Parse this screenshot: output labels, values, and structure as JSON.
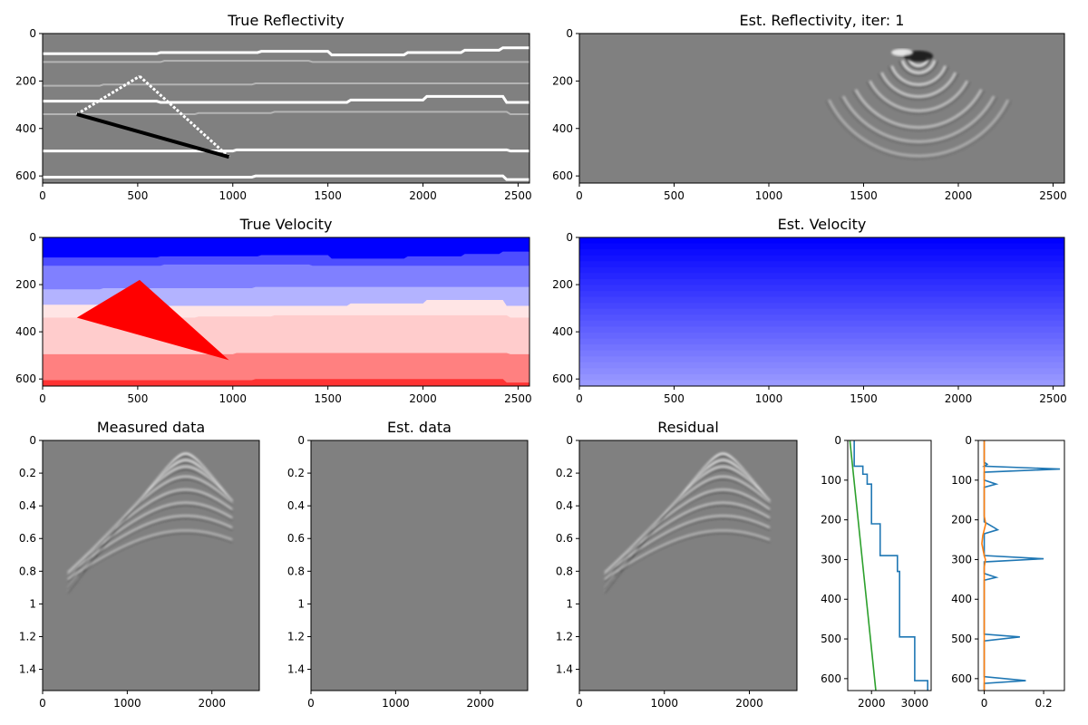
{
  "chart_data": [
    {
      "id": "true_reflectivity",
      "type": "heatmap",
      "title": "True Reflectivity",
      "colormap": "gray",
      "xlim": [
        0,
        2560
      ],
      "ylim": [
        630,
        0
      ],
      "xticks": [
        0,
        500,
        1000,
        1500,
        2000,
        2500
      ],
      "yticks": [
        0,
        200,
        400,
        600
      ],
      "layers": [
        {
          "name": "interface",
          "points": [
            [
              0,
              85
            ],
            [
              600,
              85
            ],
            [
              620,
              80
            ],
            [
              1130,
              80
            ],
            [
              1150,
              75
            ],
            [
              1500,
              75
            ],
            [
              1520,
              90
            ],
            [
              1900,
              90
            ],
            [
              1920,
              80
            ],
            [
              2200,
              80
            ],
            [
              2220,
              70
            ],
            [
              2400,
              70
            ],
            [
              2420,
              60
            ],
            [
              2560,
              60
            ]
          ],
          "amplitude": 1
        },
        {
          "name": "interface",
          "points": [
            [
              0,
              120
            ],
            [
              620,
              120
            ],
            [
              640,
              115
            ],
            [
              1400,
              115
            ],
            [
              1420,
              120
            ],
            [
              2560,
              120
            ]
          ],
          "amplitude": 0.6
        },
        {
          "name": "interface",
          "points": [
            [
              0,
              220
            ],
            [
              300,
              220
            ],
            [
              320,
              215
            ],
            [
              1100,
              215
            ],
            [
              1120,
              210
            ],
            [
              2560,
              210
            ]
          ],
          "amplitude": 0.6
        },
        {
          "name": "interface",
          "points": [
            [
              0,
              285
            ],
            [
              600,
              285
            ],
            [
              620,
              290
            ],
            [
              1600,
              290
            ],
            [
              1620,
              280
            ],
            [
              2000,
              280
            ],
            [
              2020,
              265
            ],
            [
              2420,
              265
            ],
            [
              2440,
              290
            ],
            [
              2560,
              290
            ]
          ],
          "amplitude": 1
        },
        {
          "name": "interface",
          "points": [
            [
              0,
              340
            ],
            [
              800,
              340
            ],
            [
              820,
              335
            ],
            [
              1200,
              335
            ],
            [
              1220,
              330
            ],
            [
              2440,
              330
            ],
            [
              2460,
              340
            ],
            [
              2560,
              340
            ]
          ],
          "amplitude": 0.6
        },
        {
          "name": "interface",
          "points": [
            [
              0,
              495
            ],
            [
              1000,
              495
            ],
            [
              1020,
              490
            ],
            [
              2440,
              490
            ],
            [
              2460,
              495
            ],
            [
              2560,
              495
            ]
          ],
          "amplitude": 1
        },
        {
          "name": "interface",
          "points": [
            [
              0,
              605
            ],
            [
              1100,
              605
            ],
            [
              1120,
              600
            ],
            [
              2420,
              600
            ],
            [
              2440,
              615
            ],
            [
              2560,
              615
            ]
          ],
          "amplitude": 1
        }
      ],
      "wedge": {
        "apex": [
          510,
          180
        ],
        "left": [
          180,
          340
        ],
        "right": [
          980,
          520
        ],
        "top_amplitude": 1,
        "bottom_amplitude": -1
      }
    },
    {
      "id": "est_reflectivity",
      "type": "heatmap",
      "title": "Est. Reflectivity, iter: 1",
      "colormap": "gray",
      "xlim": [
        0,
        2560
      ],
      "ylim": [
        630,
        0
      ],
      "xticks": [
        0,
        500,
        1000,
        1500,
        2000,
        2500
      ],
      "yticks": [
        0,
        200,
        400,
        600
      ],
      "source": [
        1790,
        95
      ],
      "arcs": [
        {
          "radius": 40,
          "amplitude": 1,
          "half_width_deg": 80
        },
        {
          "radius": 70,
          "amplitude": 0.85,
          "half_width_deg": 75
        },
        {
          "radius": 120,
          "amplitude": 0.7,
          "half_width_deg": 70
        },
        {
          "radius": 170,
          "amplitude": 0.6,
          "half_width_deg": 66
        },
        {
          "radius": 230,
          "amplitude": 0.5,
          "half_width_deg": 63
        },
        {
          "radius": 300,
          "amplitude": 0.45,
          "half_width_deg": 62
        },
        {
          "radius": 360,
          "amplitude": 0.35,
          "half_width_deg": 62
        },
        {
          "radius": 420,
          "amplitude": 0.25,
          "half_width_deg": 64
        }
      ]
    },
    {
      "id": "true_velocity",
      "type": "heatmap",
      "title": "True Velocity",
      "colormap": "bwr",
      "xlim": [
        0,
        2560
      ],
      "ylim": [
        630,
        0
      ],
      "xticks": [
        0,
        500,
        1000,
        1500,
        2000,
        2500
      ],
      "yticks": [
        0,
        200,
        400,
        600
      ],
      "layers": [
        {
          "top": [
            [
              0,
              0
            ],
            [
              2560,
              0
            ]
          ],
          "value": 1500
        },
        {
          "top": [
            [
              0,
              85
            ],
            [
              600,
              85
            ],
            [
              620,
              80
            ],
            [
              1130,
              80
            ],
            [
              1150,
              75
            ],
            [
              1500,
              75
            ],
            [
              1520,
              90
            ],
            [
              1900,
              90
            ],
            [
              1920,
              80
            ],
            [
              2200,
              80
            ],
            [
              2220,
              70
            ],
            [
              2400,
              70
            ],
            [
              2420,
              60
            ],
            [
              2560,
              60
            ]
          ],
          "value": 1800
        },
        {
          "top": [
            [
              0,
              120
            ],
            [
              620,
              120
            ],
            [
              640,
              115
            ],
            [
              1400,
              115
            ],
            [
              1420,
              120
            ],
            [
              2560,
              120
            ]
          ],
          "value": 2000
        },
        {
          "top": [
            [
              0,
              220
            ],
            [
              300,
              220
            ],
            [
              320,
              215
            ],
            [
              1100,
              215
            ],
            [
              1120,
              210
            ],
            [
              2560,
              210
            ]
          ],
          "value": 2200
        },
        {
          "top": [
            [
              0,
              285
            ],
            [
              600,
              285
            ],
            [
              620,
              290
            ],
            [
              1600,
              290
            ],
            [
              1620,
              280
            ],
            [
              2000,
              280
            ],
            [
              2020,
              265
            ],
            [
              2420,
              265
            ],
            [
              2440,
              290
            ],
            [
              2560,
              290
            ]
          ],
          "value": 2600
        },
        {
          "top": [
            [
              0,
              340
            ],
            [
              800,
              340
            ],
            [
              820,
              335
            ],
            [
              1200,
              335
            ],
            [
              1220,
              330
            ],
            [
              2440,
              330
            ],
            [
              2460,
              340
            ],
            [
              2560,
              340
            ]
          ],
          "value": 2700
        },
        {
          "top": [
            [
              0,
              495
            ],
            [
              1000,
              495
            ],
            [
              1020,
              490
            ],
            [
              2440,
              490
            ],
            [
              2460,
              495
            ],
            [
              2560,
              495
            ]
          ],
          "value": 3000
        },
        {
          "top": [
            [
              0,
              605
            ],
            [
              1100,
              605
            ],
            [
              1120,
              600
            ],
            [
              2420,
              600
            ],
            [
              2440,
              615
            ],
            [
              2560,
              615
            ]
          ],
          "value": 3300
        }
      ],
      "wedge": {
        "apex": [
          510,
          180
        ],
        "left": [
          180,
          340
        ],
        "right": [
          980,
          520
        ],
        "value": 3500
      }
    },
    {
      "id": "est_velocity",
      "type": "heatmap",
      "title": "Est. Velocity",
      "colormap": "bwr",
      "xlim": [
        0,
        2560
      ],
      "ylim": [
        630,
        0
      ],
      "xticks": [
        0,
        500,
        1000,
        1500,
        2000,
        2500
      ],
      "yticks": [
        0,
        200,
        400,
        600
      ],
      "gradient": {
        "top_value": 1500,
        "bottom_value": 2100,
        "steps": 25
      }
    },
    {
      "id": "measured_data",
      "type": "heatmap",
      "title": "Measured data",
      "colormap": "gray",
      "xlim": [
        0,
        2560
      ],
      "ylim": [
        1.53,
        0
      ],
      "xticks": [
        0,
        1000,
        2000
      ],
      "yticks": [
        0.0,
        0.2,
        0.4,
        0.6,
        0.8,
        1.0,
        1.2,
        1.4
      ],
      "source_x": 1690,
      "x_extent": [
        300,
        2240
      ],
      "events": [
        {
          "t0": 0.08,
          "velocity": 1500,
          "amplitude": 1
        },
        {
          "t0": 0.12,
          "velocity": 1550,
          "amplitude": 0.9
        },
        {
          "t0": 0.16,
          "velocity": 1650,
          "amplitude": 0.7
        },
        {
          "t0": 0.22,
          "velocity": 1750,
          "amplitude": 0.55
        },
        {
          "t0": 0.3,
          "velocity": 1850,
          "amplitude": 0.5
        },
        {
          "t0": 0.38,
          "velocity": 1950,
          "amplitude": 0.45
        },
        {
          "t0": 0.46,
          "velocity": 2050,
          "amplitude": 0.4
        },
        {
          "t0": 0.55,
          "velocity": 2150,
          "amplitude": 0.3
        }
      ]
    },
    {
      "id": "est_data",
      "type": "heatmap",
      "title": "Est. data",
      "colormap": "gray",
      "xlim": [
        0,
        2560
      ],
      "ylim": [
        1.53,
        0
      ],
      "xticks": [
        0,
        1000,
        2000
      ],
      "yticks": [
        0.0,
        0.2,
        0.4,
        0.6,
        0.8,
        1.0,
        1.2,
        1.4
      ],
      "events": []
    },
    {
      "id": "residual",
      "type": "heatmap",
      "title": "Residual",
      "colormap": "gray",
      "xlim": [
        0,
        2560
      ],
      "ylim": [
        1.53,
        0
      ],
      "xticks": [
        0,
        1000,
        2000
      ],
      "yticks": [
        0.0,
        0.2,
        0.4,
        0.6,
        0.8,
        1.0,
        1.2,
        1.4
      ],
      "source_x": 1690,
      "x_extent": [
        300,
        2240
      ],
      "events": [
        {
          "t0": 0.08,
          "velocity": 1500,
          "amplitude": 1
        },
        {
          "t0": 0.12,
          "velocity": 1550,
          "amplitude": 0.9
        },
        {
          "t0": 0.16,
          "velocity": 1650,
          "amplitude": 0.7
        },
        {
          "t0": 0.22,
          "velocity": 1750,
          "amplitude": 0.55
        },
        {
          "t0": 0.3,
          "velocity": 1850,
          "amplitude": 0.5
        },
        {
          "t0": 0.38,
          "velocity": 1950,
          "amplitude": 0.45
        },
        {
          "t0": 0.46,
          "velocity": 2050,
          "amplitude": 0.4
        },
        {
          "t0": 0.55,
          "velocity": 2150,
          "amplitude": 0.3
        }
      ]
    },
    {
      "id": "velocity_profile",
      "type": "line",
      "title": "",
      "xlim": [
        1450,
        3380
      ],
      "ylim": [
        630,
        0
      ],
      "xticks": [
        2000,
        3000
      ],
      "yticks": [
        0,
        100,
        200,
        300,
        400,
        500,
        600
      ],
      "series": [
        {
          "color": "#1f77b4",
          "points": [
            [
              1600,
              0
            ],
            [
              1600,
              65
            ],
            [
              1800,
              65
            ],
            [
              1800,
              80
            ],
            [
              1800,
              85
            ],
            [
              1900,
              85
            ],
            [
              1900,
              110
            ],
            [
              2000,
              110
            ],
            [
              2000,
              210
            ],
            [
              2200,
              210
            ],
            [
              2200,
              290
            ],
            [
              2600,
              290
            ],
            [
              2600,
              330
            ],
            [
              2650,
              330
            ],
            [
              2650,
              495
            ],
            [
              3000,
              495
            ],
            [
              3000,
              605
            ],
            [
              3300,
              605
            ],
            [
              3300,
              630
            ]
          ]
        },
        {
          "color": "#2ca02c",
          "points": [
            [
              1500,
              0
            ],
            [
              2100,
              630
            ]
          ]
        }
      ]
    },
    {
      "id": "reflectivity_profile",
      "type": "line",
      "title": "",
      "xlim": [
        -0.02,
        0.27
      ],
      "ylim": [
        630,
        0
      ],
      "xticks": [
        0.0,
        0.2
      ],
      "yticks": [
        0,
        100,
        200,
        300,
        400,
        500,
        600
      ],
      "series": [
        {
          "color": "#1f77b4",
          "points": [
            [
              0,
              0
            ],
            [
              0,
              55
            ],
            [
              0.01,
              60
            ],
            [
              0,
              65
            ],
            [
              0.255,
              72
            ],
            [
              0,
              80
            ],
            [
              0,
              100
            ],
            [
              0.04,
              110
            ],
            [
              0,
              118
            ],
            [
              0,
              205
            ],
            [
              0.03,
              218
            ],
            [
              0.045,
              225
            ],
            [
              0,
              235
            ],
            [
              0,
              290
            ],
            [
              0.2,
              298
            ],
            [
              0,
              306
            ],
            [
              0,
              335
            ],
            [
              0.04,
              345
            ],
            [
              0,
              352
            ],
            [
              0,
              488
            ],
            [
              0.12,
              495
            ],
            [
              0,
              505
            ],
            [
              0,
              595
            ],
            [
              0.14,
              605
            ],
            [
              0,
              612
            ],
            [
              0,
              630
            ]
          ]
        },
        {
          "color": "#ff7f0e",
          "points": [
            [
              0,
              0
            ],
            [
              0,
              190
            ],
            [
              0.005,
              210
            ],
            [
              -0.005,
              240
            ],
            [
              -0.008,
              260
            ],
            [
              0,
              290
            ],
            [
              0.004,
              300
            ],
            [
              0,
              320
            ],
            [
              0,
              630
            ]
          ]
        }
      ]
    }
  ]
}
